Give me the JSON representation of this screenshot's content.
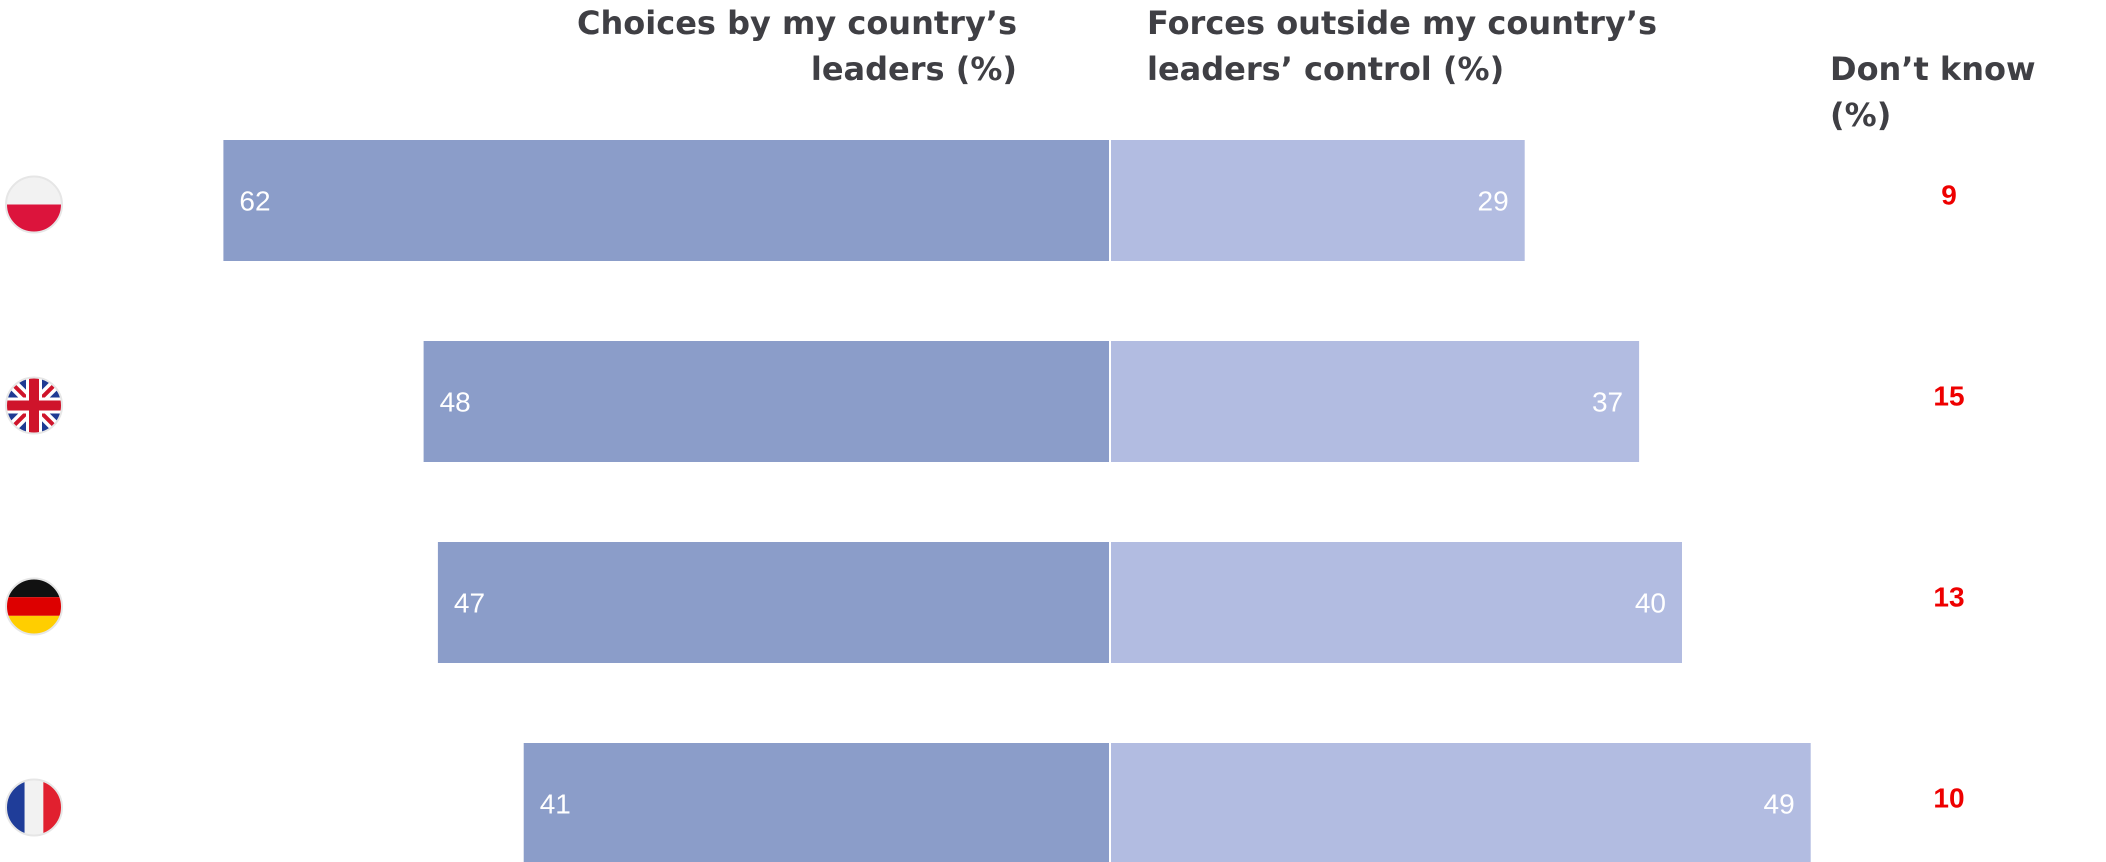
{
  "chart_data": {
    "type": "bar",
    "orientation": "horizontal-diverging",
    "categories": [
      "Poland",
      "United Kingdom",
      "Germany",
      "France"
    ],
    "flag_icons": [
      "poland-flag-icon",
      "uk-flag-icon",
      "germany-flag-icon",
      "france-flag-icon"
    ],
    "series": [
      {
        "name": "Choices by my country’s\nleaders (%)",
        "values": [
          62,
          48,
          47,
          41
        ],
        "color": "#8b9dc9"
      },
      {
        "name": "Forces outside my country’s\nleaders’ control (%)",
        "values": [
          29,
          37,
          40,
          49
        ],
        "color": "#b2bce1"
      },
      {
        "name": "Don’t know (%)",
        "values": [
          9,
          15,
          13,
          10
        ],
        "color": "#ee0000"
      }
    ],
    "title": "",
    "xlabel": "",
    "ylabel": "",
    "grid": false
  }
}
